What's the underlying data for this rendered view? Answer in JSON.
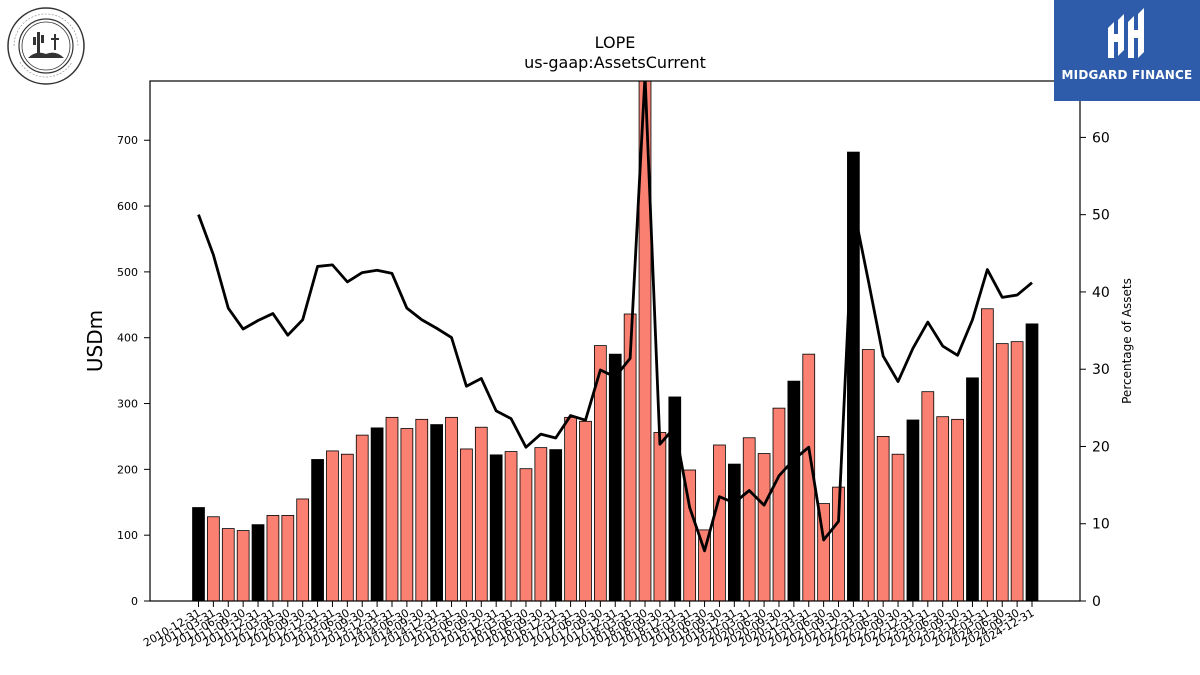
{
  "chart_data": {
    "type": "bar",
    "title": "LOPE",
    "subtitle": "us-gaap:AssetsCurrent",
    "ylabel": "USDm",
    "ylabel_right": "Percentage of Assets",
    "ylim": [
      0,
      790
    ],
    "ylim_right": [
      0,
      67.3
    ],
    "yticks": [
      0,
      100,
      200,
      300,
      400,
      500,
      600,
      700
    ],
    "yticks_right": [
      0,
      10,
      20,
      30,
      40,
      50,
      60
    ],
    "grid": false,
    "colors": {
      "annual_bar": "#000000",
      "quarter_bar": "#fa8072",
      "line": "#000000"
    },
    "categories": [
      "2010-12-31",
      "2011-03-31",
      "2011-06-30",
      "2011-09-30",
      "2011-12-31",
      "2012-03-31",
      "2012-06-30",
      "2012-09-30",
      "2012-12-31",
      "2013-03-31",
      "2013-06-30",
      "2013-09-30",
      "2013-12-31",
      "2014-03-31",
      "2014-06-30",
      "2014-09-30",
      "2014-12-31",
      "2015-03-31",
      "2015-06-30",
      "2015-09-30",
      "2015-12-31",
      "2016-03-31",
      "2016-06-30",
      "2016-09-30",
      "2016-12-31",
      "2017-03-31",
      "2017-06-30",
      "2017-09-30",
      "2017-12-31",
      "2018-03-31",
      "2018-06-30",
      "2018-09-30",
      "2018-12-31",
      "2019-03-31",
      "2019-06-30",
      "2019-09-30",
      "2019-12-31",
      "2020-03-31",
      "2020-06-30",
      "2020-09-30",
      "2020-12-31",
      "2021-03-31",
      "2021-06-30",
      "2021-09-30",
      "2021-12-31",
      "2022-03-31",
      "2022-06-30",
      "2022-09-30",
      "2022-12-31",
      "2023-03-31",
      "2023-06-30",
      "2023-09-30",
      "2023-12-31",
      "2024-03-31",
      "2024-06-30",
      "2024-09-30",
      "2024-12-31"
    ],
    "series": [
      {
        "kind": "bar",
        "axis": "left",
        "values": [
          142,
          128,
          110,
          107,
          116,
          130,
          130,
          155,
          215,
          228,
          223,
          252,
          263,
          279,
          262,
          276,
          268,
          279,
          231,
          264,
          222,
          227,
          201,
          233,
          230,
          279,
          273,
          388,
          375,
          436,
          790,
          256,
          310,
          199,
          108,
          237,
          208,
          248,
          224,
          293,
          334,
          375,
          148,
          173,
          682,
          382,
          250,
          223,
          275,
          318,
          280,
          276,
          339,
          444,
          391,
          394,
          421
        ],
        "annual": [
          true,
          false,
          false,
          false,
          true,
          false,
          false,
          false,
          true,
          false,
          false,
          false,
          true,
          false,
          false,
          false,
          true,
          false,
          false,
          false,
          true,
          false,
          false,
          false,
          true,
          false,
          false,
          false,
          true,
          false,
          false,
          false,
          true,
          false,
          false,
          false,
          true,
          false,
          false,
          false,
          true,
          false,
          false,
          false,
          true,
          false,
          false,
          false,
          true,
          false,
          false,
          false,
          true,
          false,
          false,
          false,
          true
        ]
      },
      {
        "kind": "line",
        "axis": "right",
        "values": [
          50.0,
          44.8,
          37.9,
          35.2,
          36.3,
          37.2,
          34.4,
          36.4,
          43.3,
          43.5,
          41.3,
          42.5,
          42.8,
          42.4,
          37.9,
          36.4,
          35.3,
          34.1,
          27.8,
          28.8,
          24.6,
          23.6,
          19.9,
          21.6,
          21.1,
          24.0,
          23.4,
          29.9,
          29.0,
          31.4,
          68.0,
          20.3,
          22.5,
          12.1,
          6.5,
          13.5,
          12.7,
          14.3,
          12.4,
          16.2,
          18.3,
          19.9,
          7.9,
          10.3,
          51.0,
          41.5,
          31.7,
          28.4,
          32.7,
          36.1,
          33.0,
          31.8,
          36.4,
          42.9,
          39.3,
          39.6,
          41.2
        ]
      }
    ]
  },
  "logos": {
    "left_seal_text": "GRAND CANYON UNIVERSITY",
    "left_seal_bottom": "ARIZONA 1949",
    "right_brand_text": "MIDGARD FINANCE"
  }
}
